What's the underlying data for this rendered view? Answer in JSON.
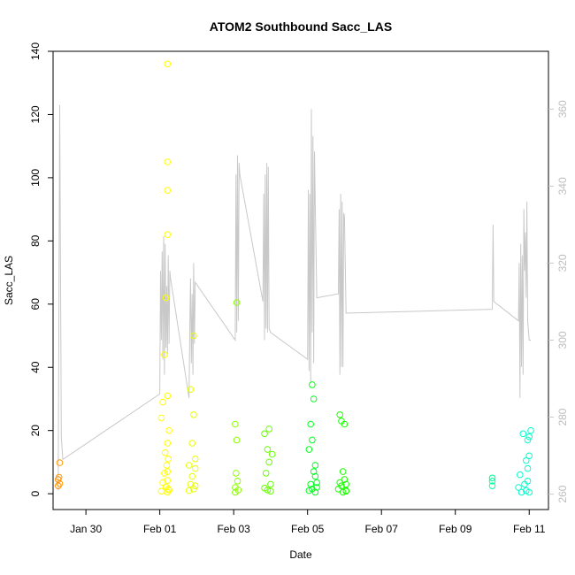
{
  "chart_data": {
    "type": "scatter",
    "title": "ATOM2 Southbound Sacc_LAS",
    "xlabel": "Date",
    "ylabel": "Sacc_LAS",
    "x_ticks": [
      "Jan 30",
      "Feb 01",
      "Feb 03",
      "Feb 05",
      "Feb 07",
      "Feb 09",
      "Feb 11"
    ],
    "x_range": [
      "Jan 29 2:40",
      "Feb 11 12:30"
    ],
    "ylim": [
      -5,
      140
    ],
    "y_ticks": [
      0,
      20,
      40,
      60,
      80,
      100,
      120,
      140
    ],
    "grid": false,
    "scatter_series": {
      "x": [
        "Jan 29 6:00",
        "Jan 29 6:00",
        "Jan 29 6:30",
        "Jan 29 7:00",
        "Jan 29 7:00",
        "Feb 1 1:00",
        "Feb 1 1:00",
        "Feb 1 2:00",
        "Feb 1 2:00",
        "Feb 1 3:00",
        "Feb 1 3:00",
        "Feb 1 3:30",
        "Feb 1 4:00",
        "Feb 1 4:00",
        "Feb 1 4:30",
        "Feb 1 5:00",
        "Feb 1 5:00",
        "Feb 1 5:00",
        "Feb 1 5:00",
        "Feb 1 5:00",
        "Feb 1 5:00",
        "Feb 1 5:00",
        "Feb 1 5:00",
        "Feb 1 5:00",
        "Feb 1 5:30",
        "Feb 1 5:30",
        "Feb 1 6:00",
        "Feb 1 6:00",
        "Feb 1 19:00",
        "Feb 1 19:00",
        "Feb 1 20:00",
        "Feb 1 20:00",
        "Feb 1 21:00",
        "Feb 1 21:00",
        "Feb 1 22:00",
        "Feb 1 22:00",
        "Feb 1 22:00",
        "Feb 1 23:00",
        "Feb 1 23:00",
        "Feb 1 23:00",
        "Feb 3 1:00",
        "Feb 3 1:00",
        "Feb 3 1:00",
        "Feb 3 1:30",
        "Feb 3 2:00",
        "Feb 3 2:00",
        "Feb 3 2:30",
        "Feb 3 3:00",
        "Feb 3 20:00",
        "Feb 3 20:00",
        "Feb 3 21:00",
        "Feb 3 22:00",
        "Feb 3 22:00",
        "Feb 3 23:00",
        "Feb 3 23:00",
        "Feb 4 0:00",
        "Feb 4 0:00",
        "Feb 4 1:00",
        "Feb 5 1:00",
        "Feb 5 1:00",
        "Feb 5 2:00",
        "Feb 5 2:00",
        "Feb 5 3:00",
        "Feb 5 3:00",
        "Feb 5 3:00",
        "Feb 5 4:00",
        "Feb 5 4:00",
        "Feb 5 5:00",
        "Feb 5 5:00",
        "Feb 5 5:00",
        "Feb 5 6:00",
        "Feb 5 6:00",
        "Feb 5 20:00",
        "Feb 5 21:00",
        "Feb 5 21:00",
        "Feb 5 22:00",
        "Feb 5 22:00",
        "Feb 5 23:00",
        "Feb 5 23:00",
        "Feb 6 0:00",
        "Feb 6 0:00",
        "Feb 6 1:00",
        "Feb 6 1:00",
        "Feb 6 1:00",
        "Feb 10 0:00",
        "Feb 10 0:00",
        "Feb 10 0:00",
        "Feb 10 17:00",
        "Feb 10 18:00",
        "Feb 10 19:00",
        "Feb 10 20:00",
        "Feb 10 21:00",
        "Feb 10 22:00",
        "Feb 10 22:00",
        "Feb 10 23:00",
        "Feb 10 23:00",
        "Feb 10 23:00",
        "Feb 11 0:00",
        "Feb 11 0:00",
        "Feb 11 0:00",
        "Feb 11 1:00"
      ],
      "y": [
        4.5,
        2.5,
        5.2,
        9.8,
        3.2,
        0.8,
        24,
        3.5,
        29,
        6.5,
        44,
        13,
        2.2,
        62,
        9,
        0.5,
        16,
        4.2,
        7,
        31,
        136,
        105,
        96,
        82,
        1.5,
        11,
        1.2,
        20,
        1,
        9,
        33,
        3,
        5.5,
        16,
        25,
        50,
        1.5,
        8,
        2.5,
        11,
        2,
        22,
        0.5,
        6.5,
        17,
        60.5,
        4,
        1.2,
        19,
        1.8,
        6.5,
        14,
        1.2,
        20.5,
        10,
        0.8,
        3,
        12.5,
        1,
        14,
        3,
        22,
        17,
        34.5,
        1.5,
        30,
        7,
        5.5,
        0.5,
        9,
        2,
        3.5,
        1.5,
        3.5,
        25,
        2.5,
        23,
        0.5,
        7,
        4.5,
        22,
        1,
        3,
        0.8,
        5,
        2.5,
        4,
        2,
        6,
        0.5,
        19,
        3,
        1,
        10.5,
        8,
        17,
        4,
        0.5,
        12,
        18,
        20
      ],
      "colors": [
        "#ff8c00",
        "#ff8c00",
        "#ff9a00",
        "#ff9a00",
        "#ff9a00",
        "#ffff00",
        "#ffff00",
        "#ffff00",
        "#ffff00",
        "#ffff00",
        "#ffff00",
        "#ffff00",
        "#ffff00",
        "#ffff00",
        "#ffff00",
        "#ffff00",
        "#ffff00",
        "#ffff00",
        "#ffff00",
        "#ffff00",
        "#ffff00",
        "#ffff00",
        "#ffff00",
        "#ffff00",
        "#ffff00",
        "#ffff00",
        "#ffff00",
        "#ffff00",
        "#e6ff00",
        "#e6ff00",
        "#e6ff00",
        "#e6ff00",
        "#e6ff00",
        "#e6ff00",
        "#e6ff00",
        "#e6ff00",
        "#e6ff00",
        "#e6ff00",
        "#e6ff00",
        "#e6ff00",
        "#8cff00",
        "#8cff00",
        "#8cff00",
        "#8cff00",
        "#8cff00",
        "#8cff00",
        "#8cff00",
        "#8cff00",
        "#66ff00",
        "#66ff00",
        "#66ff00",
        "#66ff00",
        "#66ff00",
        "#66ff00",
        "#66ff00",
        "#66ff00",
        "#66ff00",
        "#66ff00",
        "#00ff1a",
        "#00ff1a",
        "#00ff1a",
        "#00ff1a",
        "#00ff1a",
        "#00ff1a",
        "#00ff1a",
        "#00ff1a",
        "#00ff1a",
        "#00ff1a",
        "#00ff1a",
        "#00ff1a",
        "#00ff1a",
        "#00ff1a",
        "#1aff00",
        "#1aff00",
        "#1aff00",
        "#1aff00",
        "#1aff00",
        "#1aff00",
        "#1aff00",
        "#1aff00",
        "#1aff00",
        "#1aff00",
        "#1aff00",
        "#1aff00",
        "#00ff99",
        "#00ff99",
        "#00ff99",
        "#00ffcc",
        "#00ffcc",
        "#00ffcc",
        "#00ffcc",
        "#00ffcc",
        "#00ffcc",
        "#00ffcc",
        "#00ffcc",
        "#00ffcc",
        "#00ffcc",
        "#00ffcc",
        "#00ffcc",
        "#00ffcc",
        "#00ffcc"
      ]
    },
    "secondary_axis": {
      "ylim": [
        256,
        375
      ],
      "y_ticks": [
        260,
        280,
        300,
        320,
        340,
        360
      ],
      "color": "#c8c8c8"
    },
    "line_series": {
      "color": "#c8c8c8",
      "x": [
        "Jan 29 6:00",
        "Jan 29 7:00",
        "Jan 29 8:00",
        "Jan 29 9:00",
        "Feb 1 0:00",
        "Feb 1 0:30",
        "Feb 1 1:00",
        "Feb 1 1:30",
        "Feb 1 2:00",
        "Feb 1 2:30",
        "Feb 1 3:00",
        "Feb 1 3:30",
        "Feb 1 4:00",
        "Feb 1 4:30",
        "Feb 1 5:00",
        "Feb 1 5:30",
        "Feb 1 6:00",
        "Feb 1 6:30",
        "Feb 1 7:00",
        "Feb 1 19:00",
        "Feb 1 19:30",
        "Feb 1 20:00",
        "Feb 1 20:30",
        "Feb 1 21:00",
        "Feb 1 21:30",
        "Feb 1 22:00",
        "Feb 1 22:30",
        "Feb 1 23:00",
        "Feb 3 1:00",
        "Feb 3 1:30",
        "Feb 3 2:00",
        "Feb 3 2:30",
        "Feb 3 3:00",
        "Feb 3 3:30",
        "Feb 3 4:00",
        "Feb 3 19:00",
        "Feb 3 19:30",
        "Feb 3 20:00",
        "Feb 3 20:30",
        "Feb 3 21:00",
        "Feb 3 21:30",
        "Feb 3 22:00",
        "Feb 3 22:30",
        "Feb 3 23:00",
        "Feb 4 0:00",
        "Feb 5 0:00",
        "Feb 5 0:30",
        "Feb 5 1:00",
        "Feb 5 1:30",
        "Feb 5 2:00",
        "Feb 5 2:30",
        "Feb 5 3:00",
        "Feb 5 3:30",
        "Feb 5 4:00",
        "Feb 5 4:30",
        "Feb 5 5:00",
        "Feb 5 6:00",
        "Feb 5 20:00",
        "Feb 5 20:30",
        "Feb 5 21:00",
        "Feb 5 21:30",
        "Feb 5 22:00",
        "Feb 5 22:30",
        "Feb 5 23:00",
        "Feb 5 23:30",
        "Feb 6 0:00",
        "Feb 6 1:00",
        "Feb 10 0:00",
        "Feb 10 0:30",
        "Feb 10 1:00",
        "Feb 10 17:00",
        "Feb 10 17:30",
        "Feb 10 18:00",
        "Feb 10 18:30",
        "Feb 10 19:00",
        "Feb 10 19:30",
        "Feb 10 20:00",
        "Feb 10 20:30",
        "Feb 10 21:00",
        "Feb 10 21:30",
        "Feb 10 22:00",
        "Feb 10 22:30",
        "Feb 10 23:00",
        "Feb 11 0:00",
        "Feb 11 1:00"
      ],
      "y": [
        261,
        361,
        275,
        269,
        286,
        318,
        300,
        323,
        295,
        327,
        291,
        325,
        298,
        314,
        296,
        322,
        299,
        318,
        316,
        285,
        304,
        316,
        294,
        312,
        291,
        320,
        299,
        315,
        300,
        343,
        302,
        348,
        305,
        346,
        343,
        310,
        338,
        300,
        343,
        303,
        346,
        302,
        345,
        303,
        302,
        295,
        339,
        292,
        338,
        289,
        360,
        302,
        353,
        294,
        349,
        335,
        311,
        312,
        334,
        291,
        338,
        293,
        336,
        293,
        333,
        332,
        307,
        308,
        330,
        310,
        305,
        320,
        285,
        325,
        293,
        322,
        291,
        334,
        318,
        328,
        311,
        336,
        305,
        300,
        300
      ]
    }
  }
}
